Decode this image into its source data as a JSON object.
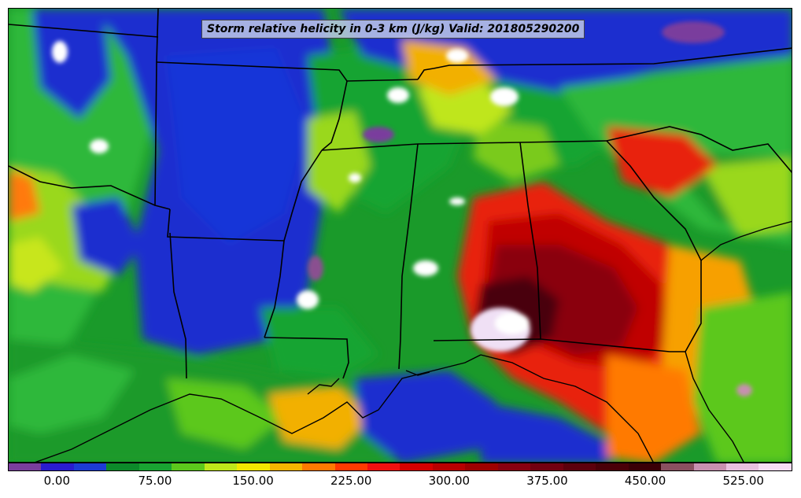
{
  "map": {
    "title": "Storm relative helicity in 0-3 km (J/kg) Valid: 201805290200",
    "variable": "Storm relative helicity",
    "units": "J/kg",
    "layer": "0-3 km",
    "valid_time": "201805290200",
    "region_features": [
      "state borders",
      "coastline"
    ]
  },
  "legend": {
    "ticks": [
      "0.00",
      "75.00",
      "150.00",
      "225.00",
      "300.00",
      "375.00",
      "450.00",
      "525.00"
    ],
    "tick_values": [
      0,
      75,
      150,
      225,
      300,
      375,
      450,
      525
    ],
    "min": -37.5,
    "max": 562.5,
    "step": 25,
    "colors": [
      "#7a3e9d",
      "#2a1ccf",
      "#1d3bd6",
      "#0c8a2a",
      "#19a432",
      "#5cc81c",
      "#bfe61a",
      "#f2e600",
      "#f7b500",
      "#ff7a00",
      "#ff3a00",
      "#f01010",
      "#d40000",
      "#b80000",
      "#9e0000",
      "#880010",
      "#720010",
      "#5c000c",
      "#4a0008",
      "#3a0006",
      "#8a5060",
      "#c890b0",
      "#e8c0e0",
      "#f5dcf5"
    ]
  }
}
